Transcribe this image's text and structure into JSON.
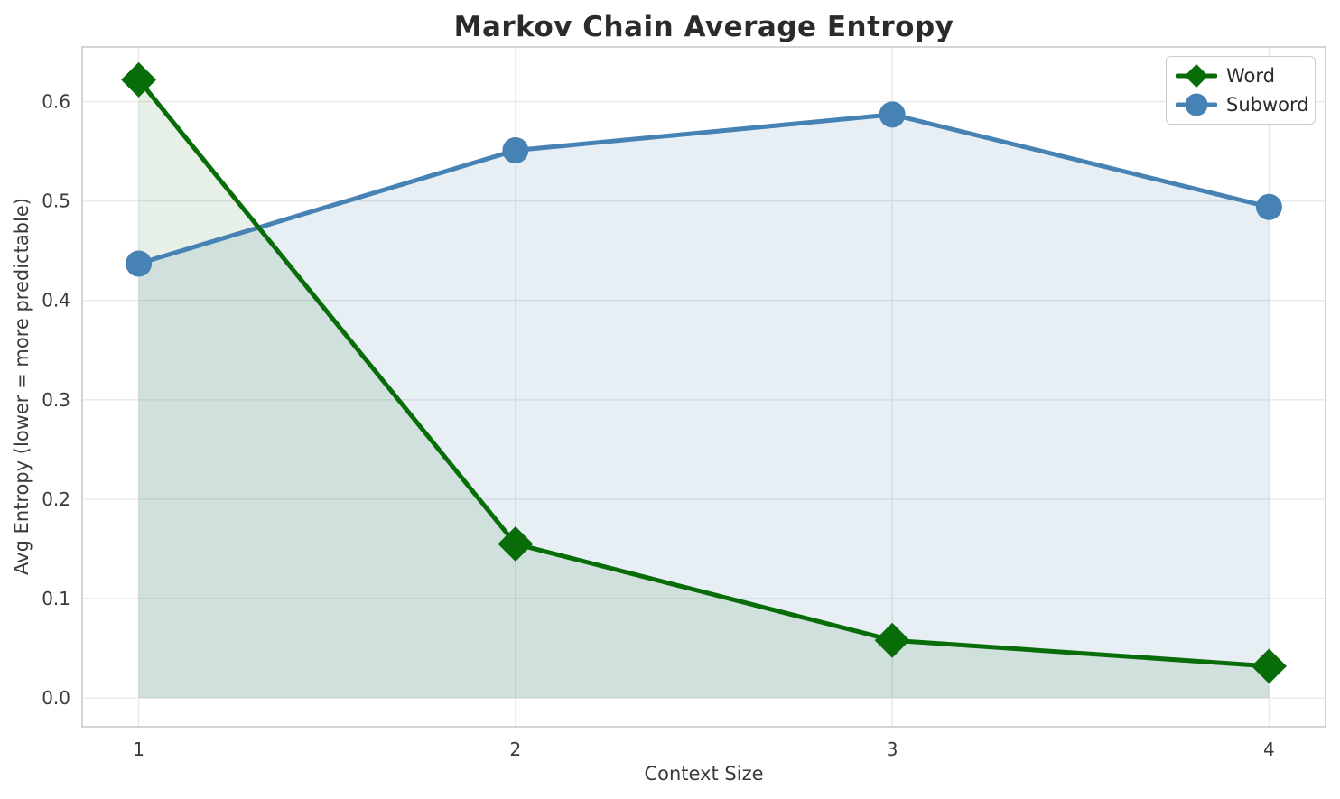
{
  "chart_data": {
    "type": "line",
    "title": "Markov Chain Average Entropy",
    "xlabel": "Context Size",
    "ylabel": "Avg Entropy (lower = more predictable)",
    "x": [
      1,
      2,
      3,
      4
    ],
    "x_ticks": [
      "1",
      "2",
      "3",
      "4"
    ],
    "y_ticks": [
      "0.0",
      "0.1",
      "0.2",
      "0.3",
      "0.4",
      "0.5",
      "0.6"
    ],
    "y_tick_values": [
      0.0,
      0.1,
      0.2,
      0.3,
      0.4,
      0.5,
      0.6
    ],
    "xlim": [
      0.85,
      4.15
    ],
    "ylim": [
      -0.029,
      0.655
    ],
    "grid": true,
    "legend_position": "upper right",
    "area_fill_baseline": 0.0,
    "series": [
      {
        "name": "Word",
        "values": [
          0.622,
          0.155,
          0.058,
          0.032
        ],
        "color": "#086d08",
        "marker": "diamond",
        "fill_opacity": 0.1
      },
      {
        "name": "Subword",
        "values": [
          0.437,
          0.551,
          0.587,
          0.494
        ],
        "color": "#4682b4",
        "marker": "circle",
        "fill_opacity": 0.13
      }
    ],
    "draw_order": [
      1,
      0
    ]
  },
  "style_colors": {
    "grid": "#e9e9e9",
    "spine": "#c9c9c9",
    "tick_label": "#3a3a3a",
    "title": "#2b2b2b"
  }
}
